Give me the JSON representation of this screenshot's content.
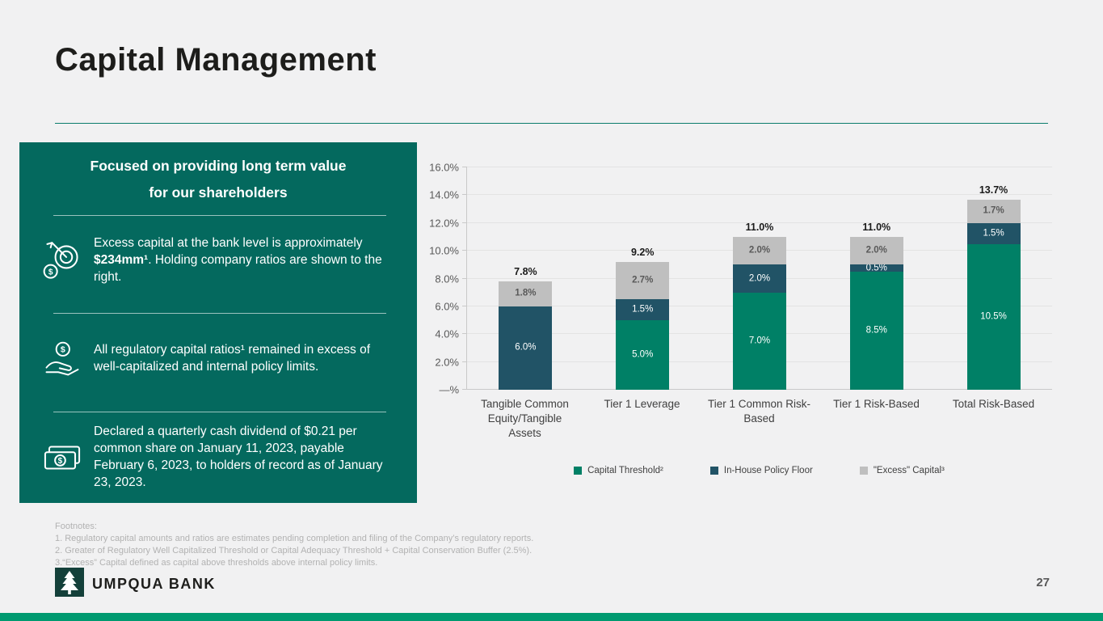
{
  "slide": {
    "title": "Capital Management",
    "page_number": "27"
  },
  "brand": {
    "name": "UMPQUA BANK"
  },
  "colors": {
    "panel_teal": "#04695e",
    "capital_threshold": "#008066",
    "in_house_policy_floor": "#215366",
    "excess_capital": "#bfbfbf",
    "bottom_accent": "#009a70"
  },
  "panel": {
    "heading_line1": "Focused on providing long term value",
    "heading_line2": "for our shareholders",
    "bullet1": {
      "pre": "Excess capital at the bank level is approximately ",
      "bold": "$234mm¹",
      "post": ".  Holding company ratios are shown to the right."
    },
    "bullet2": "All regulatory capital ratios¹ remained in excess of well-capitalized and internal policy limits.",
    "bullet3": "Declared a quarterly cash dividend of $0.21 per common share on January 11, 2023, payable February 6, 2023, to holders of record as of January 23, 2023."
  },
  "footnotes": {
    "title": "Footnotes:",
    "lines": [
      "1. Regulatory capital amounts and ratios are estimates pending completion and filing of the Company’s regulatory reports.",
      "2. Greater of Regulatory Well Capitalized Threshold or Capital Adequacy Threshold + Capital Conservation Buffer (2.5%).",
      "3.“Excess” Capital defined as capital above thresholds above internal policy limits."
    ]
  },
  "chart_data": {
    "type": "bar",
    "stacked": true,
    "categories": [
      "Tangible Common Equity/Tangible Assets",
      "Tier 1 Leverage",
      "Tier 1 Common Risk-Based",
      "Tier 1 Risk-Based",
      "Total Risk-Based"
    ],
    "series": [
      {
        "name": "Capital Threshold²",
        "color": "#008066",
        "values": [
          0,
          5.0,
          7.0,
          8.5,
          10.5
        ]
      },
      {
        "name": "In-House Policy Floor",
        "color": "#215366",
        "values": [
          6.0,
          1.5,
          2.0,
          0.5,
          1.5
        ]
      },
      {
        "name": "\"Excess\" Capital³",
        "color": "#bfbfbf",
        "values": [
          1.8,
          2.7,
          2.0,
          2.0,
          1.7
        ]
      }
    ],
    "totals": [
      "7.8%",
      "9.2%",
      "11.0%",
      "11.0%",
      "13.7%"
    ],
    "title": "",
    "xlabel": "",
    "ylabel": "",
    "ylim": [
      0,
      16
    ],
    "ytick_step": 2,
    "ytick_labels": [
      "—%",
      "2.0%",
      "4.0%",
      "6.0%",
      "8.0%",
      "10.0%",
      "12.0%",
      "14.0%",
      "16.0%"
    ],
    "grid": true,
    "legend_position": "bottom"
  }
}
